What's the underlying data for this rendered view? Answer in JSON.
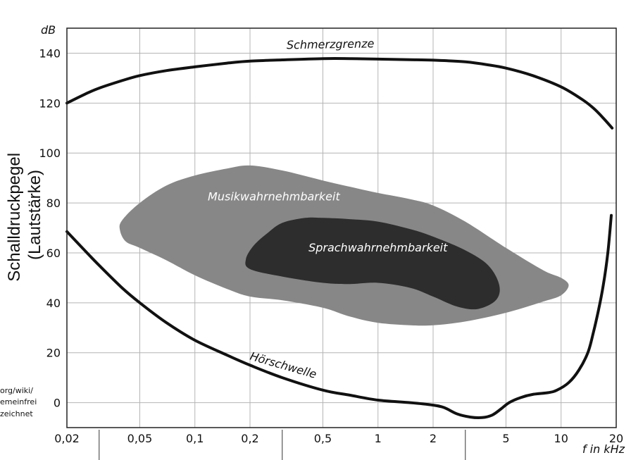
{
  "chart_data": {
    "type": "line",
    "title": "",
    "ylabel_lines": [
      "Schalldruckpegel",
      "(Lautstärke)"
    ],
    "y_unit": "dB",
    "x_unit": "f in kHz",
    "x_scale": "log",
    "xlim": [
      0.02,
      20
    ],
    "ylim": [
      -10,
      150
    ],
    "grid": true,
    "x_ticks": [
      {
        "value": 0.02,
        "label": "0,02"
      },
      {
        "value": 0.05,
        "label": "0,05"
      },
      {
        "value": 0.1,
        "label": "0,1"
      },
      {
        "value": 0.2,
        "label": "0,2"
      },
      {
        "value": 0.5,
        "label": "0,5"
      },
      {
        "value": 1,
        "label": "1"
      },
      {
        "value": 2,
        "label": "2"
      },
      {
        "value": 5,
        "label": "5"
      },
      {
        "value": 10,
        "label": "10"
      },
      {
        "value": 20,
        "label": "20"
      }
    ],
    "y_ticks": [
      {
        "value": 0,
        "label": "0"
      },
      {
        "value": 20,
        "label": "20"
      },
      {
        "value": 40,
        "label": "40"
      },
      {
        "value": 60,
        "label": "60"
      },
      {
        "value": 80,
        "label": "80"
      },
      {
        "value": 100,
        "label": "100"
      },
      {
        "value": 120,
        "label": "120"
      },
      {
        "value": 140,
        "label": "140"
      }
    ],
    "series": [
      {
        "name": "Schmerzgrenze",
        "color": "#111111",
        "points": [
          [
            0.02,
            120
          ],
          [
            0.025,
            123.5
          ],
          [
            0.03,
            126
          ],
          [
            0.04,
            129
          ],
          [
            0.05,
            131
          ],
          [
            0.07,
            133
          ],
          [
            0.1,
            134.5
          ],
          [
            0.15,
            136
          ],
          [
            0.2,
            136.8
          ],
          [
            0.3,
            137.3
          ],
          [
            0.5,
            137.8
          ],
          [
            0.7,
            137.8
          ],
          [
            1,
            137.6
          ],
          [
            1.5,
            137.4
          ],
          [
            2,
            137.2
          ],
          [
            3,
            136.5
          ],
          [
            4,
            135.3
          ],
          [
            5,
            134
          ],
          [
            7,
            131
          ],
          [
            10,
            126.5
          ],
          [
            13,
            121.5
          ],
          [
            15,
            118
          ],
          [
            17,
            114
          ],
          [
            19,
            110
          ]
        ]
      },
      {
        "name": "Hörschwelle",
        "color": "#111111",
        "points": [
          [
            0.02,
            68.5
          ],
          [
            0.025,
            61
          ],
          [
            0.03,
            55
          ],
          [
            0.04,
            46
          ],
          [
            0.05,
            40
          ],
          [
            0.07,
            32
          ],
          [
            0.1,
            25
          ],
          [
            0.15,
            19
          ],
          [
            0.2,
            15
          ],
          [
            0.3,
            10
          ],
          [
            0.5,
            5
          ],
          [
            0.7,
            3
          ],
          [
            1,
            1
          ],
          [
            1.5,
            0
          ],
          [
            2,
            -1
          ],
          [
            2.3,
            -2
          ],
          [
            2.7,
            -4.5
          ],
          [
            3.2,
            -5.8
          ],
          [
            3.7,
            -6
          ],
          [
            4.2,
            -5
          ],
          [
            4.7,
            -2.5
          ],
          [
            5.2,
            0
          ],
          [
            6,
            2
          ],
          [
            7,
            3.3
          ],
          [
            8.5,
            4
          ],
          [
            9.5,
            5
          ],
          [
            11,
            8
          ],
          [
            12.5,
            13
          ],
          [
            14,
            20
          ],
          [
            15,
            28
          ],
          [
            16,
            37
          ],
          [
            17,
            47
          ],
          [
            18,
            60
          ],
          [
            18.8,
            75
          ]
        ]
      }
    ],
    "regions": [
      {
        "name": "Musikwahrnehmbarkeit",
        "color": "#878787",
        "points": [
          [
            0.04,
            73
          ],
          [
            0.05,
            80
          ],
          [
            0.07,
            87
          ],
          [
            0.1,
            91
          ],
          [
            0.15,
            93.8
          ],
          [
            0.2,
            95
          ],
          [
            0.3,
            93
          ],
          [
            0.5,
            89
          ],
          [
            0.7,
            86.5
          ],
          [
            1,
            84
          ],
          [
            1.5,
            81.5
          ],
          [
            2,
            79
          ],
          [
            3,
            72.5
          ],
          [
            5,
            62
          ],
          [
            8,
            53
          ],
          [
            10,
            50
          ],
          [
            11,
            47
          ],
          [
            10,
            43
          ],
          [
            8,
            40.5
          ],
          [
            5,
            36
          ],
          [
            3,
            32.5
          ],
          [
            2,
            31
          ],
          [
            1.5,
            31
          ],
          [
            1,
            32
          ],
          [
            0.7,
            34.5
          ],
          [
            0.5,
            38
          ],
          [
            0.3,
            41
          ],
          [
            0.2,
            42.5
          ],
          [
            0.15,
            45.5
          ],
          [
            0.1,
            51
          ],
          [
            0.07,
            57
          ],
          [
            0.05,
            62
          ],
          [
            0.042,
            64.5
          ],
          [
            0.039,
            69
          ]
        ]
      },
      {
        "name": "Sprachwahrnehmbarkeit",
        "color": "#2d2d2d",
        "points": [
          [
            0.19,
            57.5
          ],
          [
            0.21,
            63
          ],
          [
            0.25,
            68
          ],
          [
            0.3,
            72
          ],
          [
            0.4,
            74
          ],
          [
            0.5,
            74
          ],
          [
            0.7,
            73.5
          ],
          [
            1,
            72.5
          ],
          [
            1.5,
            69.5
          ],
          [
            2,
            66.5
          ],
          [
            3,
            61
          ],
          [
            4,
            55
          ],
          [
            4.6,
            47
          ],
          [
            4.4,
            41
          ],
          [
            3.5,
            37.5
          ],
          [
            2.7,
            38.5
          ],
          [
            2,
            42.5
          ],
          [
            1.5,
            46
          ],
          [
            1,
            48
          ],
          [
            0.7,
            47.5
          ],
          [
            0.5,
            48
          ],
          [
            0.3,
            50.5
          ],
          [
            0.2,
            53.5
          ]
        ]
      }
    ],
    "labels": [
      {
        "text": "Schmerzgrenze",
        "x": 0.55,
        "y": 142,
        "rotate": -1
      },
      {
        "text": "Hörschwelle",
        "x": 0.3,
        "y": 13.5,
        "rotate": 16
      },
      {
        "text": "Musikwahrnehmbarkeit",
        "x": 0.27,
        "y": 81,
        "rotate": 0
      },
      {
        "text": "Sprachwahrnehmbarkeit",
        "x": 1,
        "y": 60.5,
        "rotate": 0
      }
    ],
    "attribution_lines": [
      "org/wiki/",
      "emeinfrei",
      "zeichnet"
    ]
  }
}
